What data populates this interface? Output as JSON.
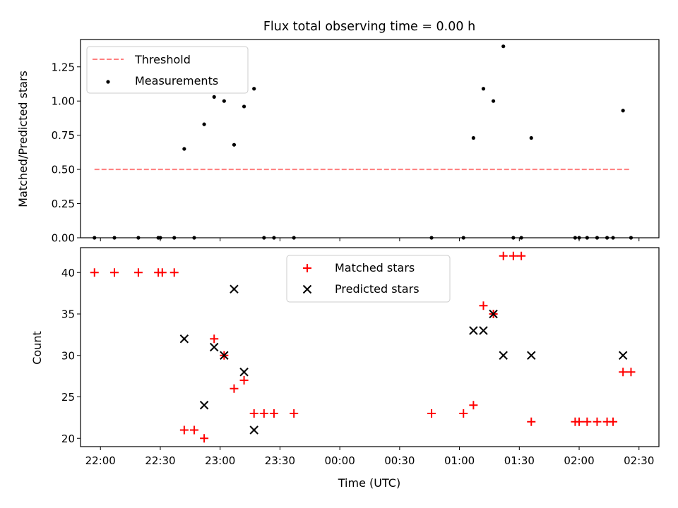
{
  "chart_data": [
    {
      "type": "scatter",
      "title": "Flux total observing time = 0.00 h",
      "xlabel": "",
      "ylabel": "Matched/Predicted stars",
      "xlim": [
        "21:50",
        "02:40"
      ],
      "ylim": [
        0,
        1.45
      ],
      "yticks": [
        "0.00",
        "0.25",
        "0.50",
        "0.75",
        "1.00",
        "1.25"
      ],
      "legend_position": "top-left",
      "threshold": {
        "name": "Threshold",
        "value": 0.5,
        "x_from": "21:57",
        "x_to": "02:26",
        "color": "#ff7f7f"
      },
      "series": [
        {
          "name": "Measurements",
          "color": "#000000",
          "points": [
            [
              "21:57",
              0.0
            ],
            [
              "22:07",
              0.0
            ],
            [
              "22:19",
              0.0
            ],
            [
              "22:29",
              0.0
            ],
            [
              "22:30",
              0.0
            ],
            [
              "22:37",
              0.0
            ],
            [
              "22:42",
              0.65
            ],
            [
              "22:47",
              0.0
            ],
            [
              "22:52",
              0.83
            ],
            [
              "22:57",
              1.03
            ],
            [
              "23:02",
              1.0
            ],
            [
              "23:07",
              0.68
            ],
            [
              "23:12",
              0.96
            ],
            [
              "23:17",
              1.09
            ],
            [
              "23:22",
              0.0
            ],
            [
              "23:27",
              0.0
            ],
            [
              "23:37",
              0.0
            ],
            [
              "00:46",
              0.0
            ],
            [
              "01:02",
              0.0
            ],
            [
              "01:07",
              0.73
            ],
            [
              "01:12",
              1.09
            ],
            [
              "01:17",
              1.0
            ],
            [
              "01:22",
              1.4
            ],
            [
              "01:27",
              0.0
            ],
            [
              "01:31",
              0.0
            ],
            [
              "01:36",
              0.73
            ],
            [
              "01:58",
              0.0
            ],
            [
              "02:00",
              0.0
            ],
            [
              "02:04",
              0.0
            ],
            [
              "02:09",
              0.0
            ],
            [
              "02:14",
              0.0
            ],
            [
              "02:17",
              0.0
            ],
            [
              "02:22",
              0.93
            ],
            [
              "02:26",
              0.0
            ]
          ]
        }
      ]
    },
    {
      "type": "scatter",
      "title": "",
      "xlabel": "Time (UTC)",
      "ylabel": "Count",
      "xlim": [
        "21:50",
        "02:40"
      ],
      "ylim": [
        19,
        43
      ],
      "yticks": [
        "20",
        "25",
        "30",
        "35",
        "40"
      ],
      "xticks": [
        "22:00",
        "22:30",
        "23:00",
        "23:30",
        "00:00",
        "00:30",
        "01:00",
        "01:30",
        "02:00",
        "02:30"
      ],
      "legend_position": "top-center",
      "series": [
        {
          "name": "Matched stars",
          "marker": "plus",
          "color": "#ff0000",
          "points": [
            [
              "21:57",
              40
            ],
            [
              "22:07",
              40
            ],
            [
              "22:19",
              40
            ],
            [
              "22:29",
              40
            ],
            [
              "22:31",
              40
            ],
            [
              "22:37",
              40
            ],
            [
              "22:42",
              21
            ],
            [
              "22:47",
              21
            ],
            [
              "22:52",
              20
            ],
            [
              "22:57",
              32
            ],
            [
              "23:02",
              30
            ],
            [
              "23:07",
              26
            ],
            [
              "23:12",
              27
            ],
            [
              "23:17",
              23
            ],
            [
              "23:22",
              23
            ],
            [
              "23:27",
              23
            ],
            [
              "23:37",
              23
            ],
            [
              "00:46",
              23
            ],
            [
              "01:02",
              23
            ],
            [
              "01:07",
              24
            ],
            [
              "01:12",
              36
            ],
            [
              "01:17",
              35
            ],
            [
              "01:22",
              42
            ],
            [
              "01:27",
              42
            ],
            [
              "01:31",
              42
            ],
            [
              "01:36",
              22
            ],
            [
              "01:58",
              22
            ],
            [
              "02:00",
              22
            ],
            [
              "02:04",
              22
            ],
            [
              "02:09",
              22
            ],
            [
              "02:14",
              22
            ],
            [
              "02:17",
              22
            ],
            [
              "02:22",
              28
            ],
            [
              "02:26",
              28
            ]
          ]
        },
        {
          "name": "Predicted stars",
          "marker": "x",
          "color": "#000000",
          "points": [
            [
              "22:42",
              32
            ],
            [
              "22:52",
              24
            ],
            [
              "22:57",
              31
            ],
            [
              "23:02",
              30
            ],
            [
              "23:07",
              38
            ],
            [
              "23:12",
              28
            ],
            [
              "23:17",
              21
            ],
            [
              "01:07",
              33
            ],
            [
              "01:12",
              33
            ],
            [
              "01:17",
              35
            ],
            [
              "01:22",
              30
            ],
            [
              "01:36",
              30
            ],
            [
              "02:22",
              30
            ]
          ]
        }
      ]
    }
  ]
}
